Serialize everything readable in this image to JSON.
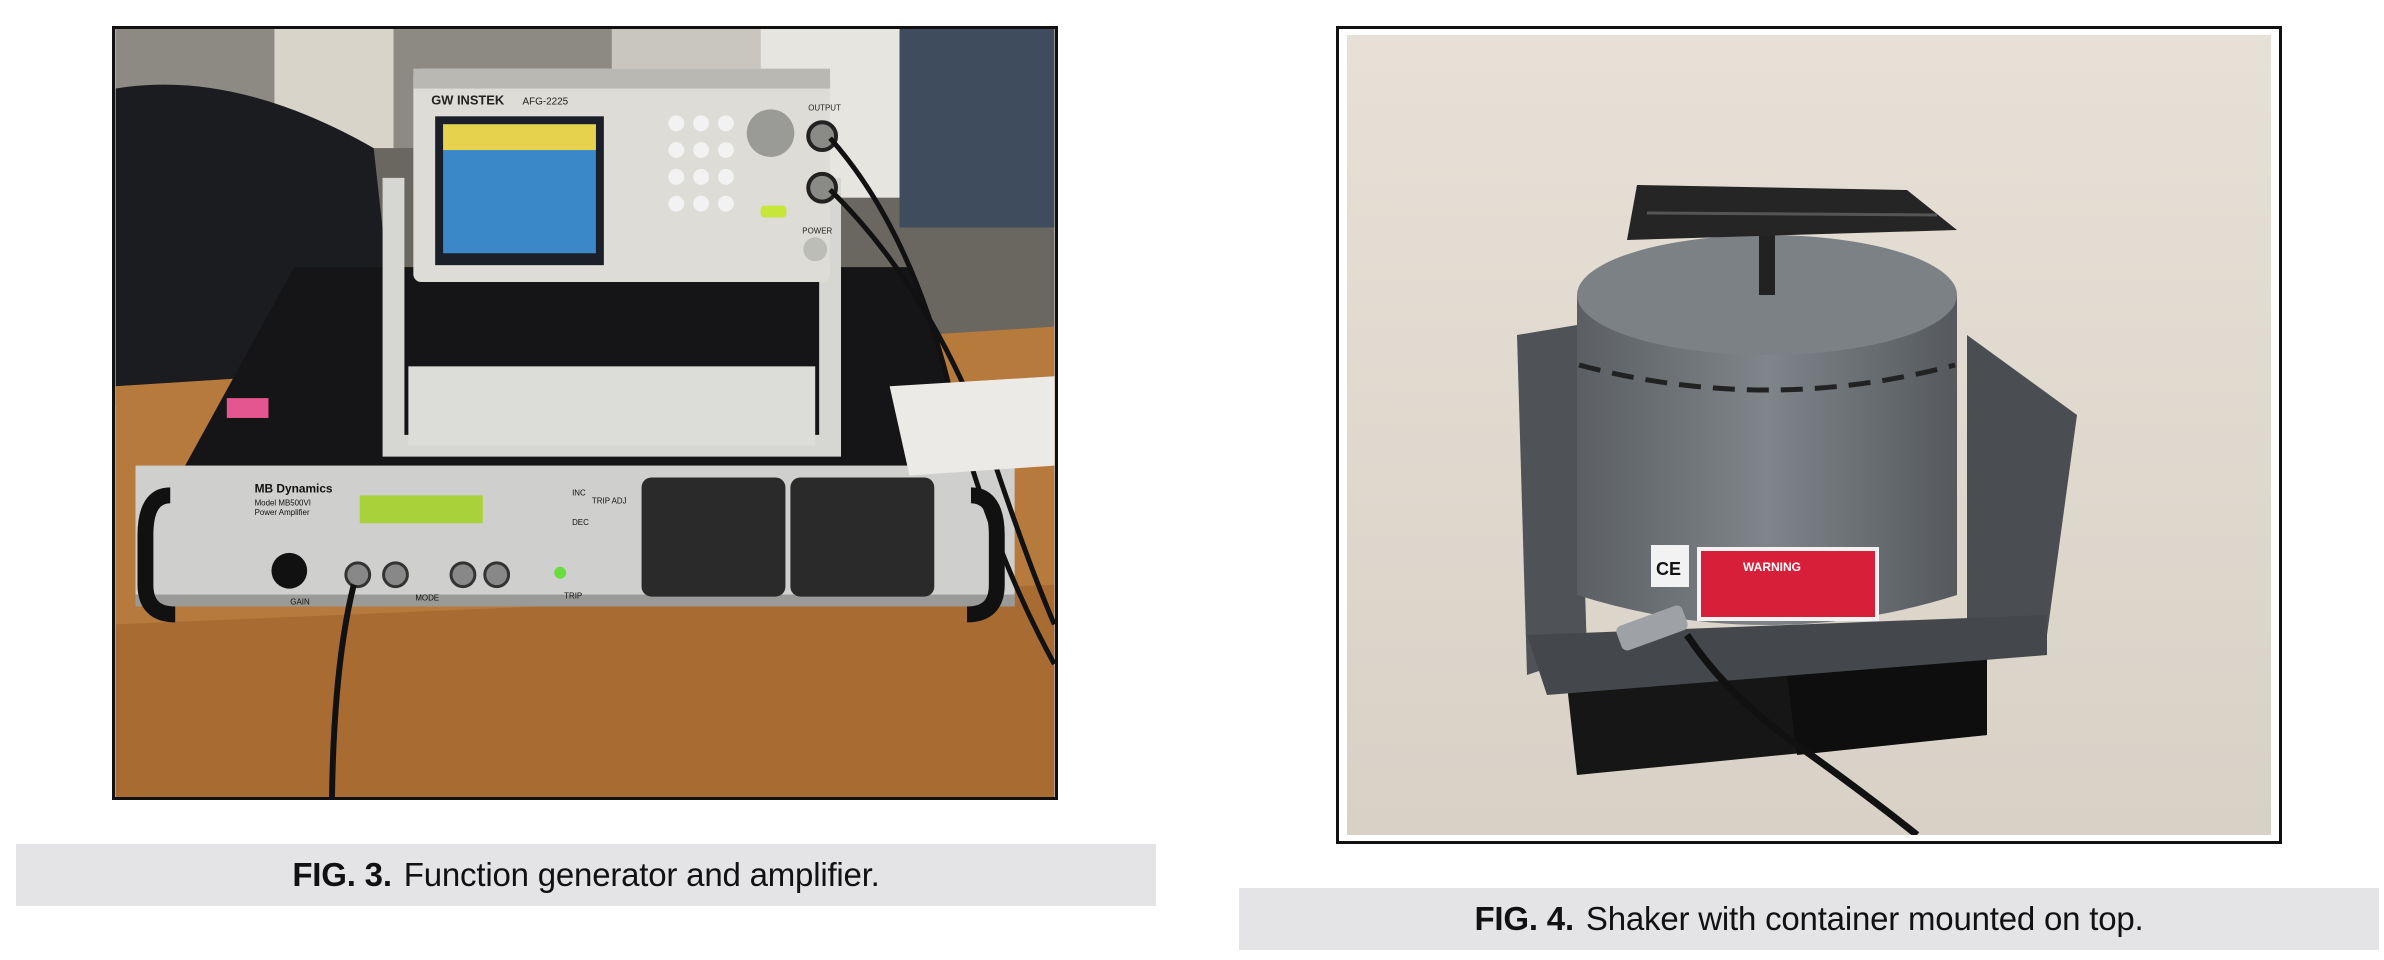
{
  "figures": [
    {
      "label": "FIG. 3.",
      "caption": "Function generator and amplifier.",
      "panel_text": {
        "generator_brand": "GW INSTEK",
        "generator_model": "AFG-2225",
        "generator_output": "OUTPUT",
        "generator_power": "POWER",
        "amplifier_brand": "MB Dynamics",
        "amplifier_model": "Model MB500VI",
        "amplifier_type": "Power Amplifier",
        "amplifier_gain": "GAIN",
        "amplifier_mode": "MODE",
        "amplifier_trip": "TRIP",
        "amplifier_trip_adj": "TRIP ADJ",
        "amplifier_inc": "INC",
        "amplifier_dec": "DEC"
      }
    },
    {
      "label": "FIG. 4.",
      "caption": "Shaker with container mounted on top.",
      "panel_text": {
        "warning_label": "WARNING",
        "ce_mark": "CE"
      }
    }
  ],
  "colors": {
    "caption_bg": "#e4e4e7",
    "photo_border": "#111111"
  }
}
